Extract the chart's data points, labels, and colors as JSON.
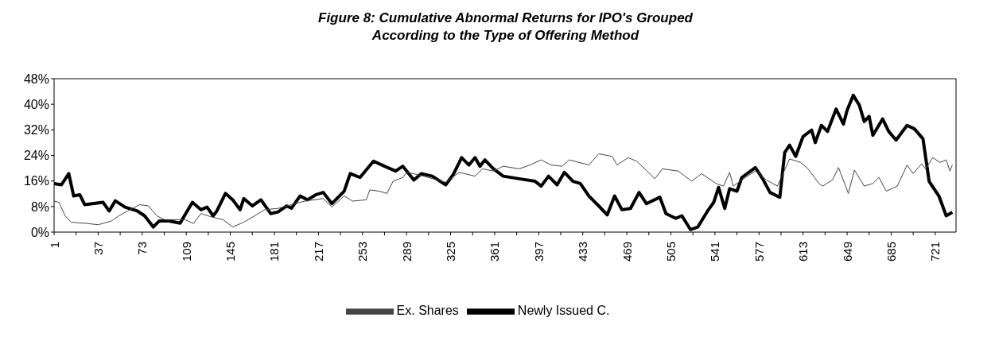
{
  "chart_data": {
    "type": "line",
    "title": "Figure 8: Cumulative Abnormal Returns for IPO's Grouped\nAccording to the Type of Offering Method",
    "series": [
      {
        "name": "Newly Issued C.",
        "color": "#000000",
        "line_style": "solid",
        "x": [
          1,
          7,
          13,
          17,
          22,
          26,
          41,
          46,
          51,
          59,
          69,
          75,
          82,
          87,
          95,
          104,
          108,
          114,
          121,
          126,
          131,
          134,
          141,
          147,
          153,
          156,
          163,
          170,
          178,
          184,
          191,
          195,
          202,
          208,
          215,
          221,
          228,
          238,
          243,
          251,
          262,
          271,
          280,
          286,
          295,
          301,
          310,
          321,
          327,
          334,
          340,
          345,
          349,
          353,
          360,
          368,
          381,
          394,
          399,
          405,
          412,
          418,
          425,
          431,
          438,
          446,
          453,
          459,
          465,
          472,
          479,
          485,
          496,
          501,
          509,
          514,
          521,
          527,
          535,
          540,
          544,
          549,
          553,
          559,
          563,
          574,
          580,
          586,
          594,
          598,
          602,
          607,
          613,
          620,
          623,
          628,
          633,
          640,
          646,
          649,
          654,
          659,
          663,
          667,
          670,
          678,
          683,
          689,
          698,
          704,
          711,
          716,
          724,
          730,
          735
        ],
        "values": [
          15.2,
          14.8,
          18.3,
          11.3,
          11.7,
          8.6,
          9.3,
          6.6,
          9.8,
          7.8,
          6.6,
          5.1,
          1.6,
          3.5,
          3.5,
          2.8,
          5.4,
          9.3,
          7.0,
          7.8,
          5.1,
          6.6,
          12.1,
          10.1,
          7.0,
          10.5,
          8.2,
          10.1,
          5.8,
          6.3,
          8.2,
          7.5,
          11.3,
          10.1,
          11.7,
          12.4,
          8.9,
          12.8,
          18.3,
          17.1,
          22.2,
          20.6,
          19.1,
          20.6,
          16.3,
          18.3,
          17.5,
          14.8,
          17.9,
          23.3,
          21.0,
          23.3,
          20.6,
          22.6,
          19.8,
          17.5,
          16.7,
          15.9,
          14.4,
          17.5,
          14.8,
          18.7,
          15.9,
          15.2,
          11.3,
          8.2,
          5.4,
          11.3,
          7.0,
          7.4,
          12.4,
          8.9,
          10.9,
          5.8,
          4.3,
          5.1,
          0.8,
          1.6,
          6.6,
          9.3,
          14.0,
          7.4,
          13.6,
          12.8,
          17.1,
          20.2,
          16.7,
          12.4,
          10.9,
          24.9,
          27.2,
          23.7,
          29.9,
          31.9,
          28.0,
          33.4,
          31.5,
          38.5,
          33.8,
          38.1,
          42.8,
          39.7,
          34.6,
          36.2,
          30.3,
          35.4,
          31.5,
          28.8,
          33.4,
          32.3,
          29.2,
          15.9,
          11.3,
          5.1,
          6.2
        ]
      },
      {
        "name": "Ex. Shares",
        "color": "#444444",
        "line_style": "solid",
        "x": [
          1,
          5,
          10,
          15,
          28,
          37,
          48,
          54,
          61,
          71,
          78,
          85,
          91,
          108,
          115,
          121,
          130,
          139,
          147,
          156,
          165,
          173,
          184,
          195,
          206,
          221,
          228,
          238,
          245,
          256,
          259,
          267,
          273,
          278,
          286,
          289,
          299,
          321,
          332,
          345,
          351,
          360,
          368,
          381,
          390,
          399,
          407,
          416,
          422,
          438,
          446,
          457,
          461,
          470,
          477,
          492,
          498,
          511,
          522,
          530,
          542,
          548,
          553,
          556,
          566,
          574,
          583,
          592,
          602,
          611,
          617,
          626,
          629,
          637,
          642,
          650,
          655,
          663,
          670,
          675,
          681,
          690,
          698,
          703,
          710,
          713,
          719,
          725,
          730,
          733,
          735
        ],
        "values": [
          9.7,
          9.3,
          5.1,
          3.1,
          2.7,
          2.3,
          3.5,
          5.1,
          6.6,
          8.6,
          8.2,
          5.1,
          3.9,
          3.9,
          2.7,
          5.8,
          4.7,
          3.9,
          1.6,
          3.1,
          5.1,
          7.0,
          7.4,
          8.6,
          9.7,
          10.5,
          7.8,
          11.3,
          9.7,
          10.1,
          13.2,
          12.8,
          12.1,
          15.9,
          17.1,
          18.7,
          17.9,
          15.6,
          18.7,
          17.5,
          19.8,
          19.1,
          20.6,
          19.8,
          21.0,
          22.6,
          21.0,
          20.6,
          22.6,
          21.0,
          24.5,
          23.7,
          21.0,
          23.3,
          22.2,
          16.7,
          19.8,
          19.1,
          15.9,
          18.3,
          15.2,
          14.4,
          18.7,
          14.4,
          17.1,
          19.1,
          16.3,
          14.4,
          22.9,
          21.8,
          19.8,
          15.2,
          14.4,
          16.3,
          20.2,
          12.1,
          19.4,
          14.4,
          15.2,
          17.1,
          12.8,
          14.4,
          21.0,
          18.3,
          21.4,
          19.8,
          23.3,
          21.8,
          22.6,
          19.1,
          21.0
        ]
      }
    ],
    "xlim": [
      1,
      738
    ],
    "xticks": [
      1,
      {
        "value": 19,
        "label": null
      },
      37,
      {
        "value": 55,
        "label": null
      },
      73,
      {
        "value": 91,
        "label": null
      },
      109,
      {
        "value": 127,
        "label": null
      },
      145,
      {
        "value": 163,
        "label": null
      },
      181,
      {
        "value": 199,
        "label": null
      },
      217,
      {
        "value": 235,
        "label": null
      },
      253,
      {
        "value": 271,
        "label": null
      },
      289,
      {
        "value": 307,
        "label": null
      },
      325,
      {
        "value": 343,
        "label": null
      },
      361,
      {
        "value": 379,
        "label": null
      },
      397,
      {
        "value": 415,
        "label": null
      },
      433,
      {
        "value": 451,
        "label": null
      },
      469,
      {
        "value": 487,
        "label": null
      },
      505,
      {
        "value": 523,
        "label": null
      },
      541,
      {
        "value": 559,
        "label": null
      },
      577,
      {
        "value": 595,
        "label": null
      },
      613,
      {
        "value": 631,
        "label": null
      },
      649,
      {
        "value": 667,
        "label": null
      },
      685,
      {
        "value": 703,
        "label": null
      },
      721
    ],
    "ylim": [
      0,
      48
    ],
    "yticks": [
      {
        "value": 0,
        "label": "0%"
      },
      {
        "value": 8,
        "label": "8%"
      },
      {
        "value": 16,
        "label": "16%"
      },
      {
        "value": 24,
        "label": "24%"
      },
      {
        "value": 32,
        "label": "32%"
      },
      {
        "value": 40,
        "label": "40%"
      },
      {
        "value": 48,
        "label": "48%"
      }
    ],
    "grid": false,
    "legend": "bottom",
    "marker": "none"
  }
}
